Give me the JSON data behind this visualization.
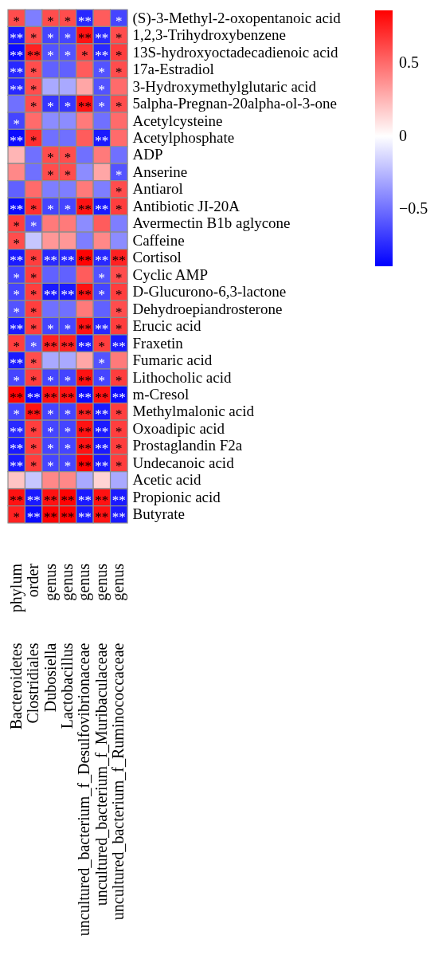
{
  "chart_data": {
    "type": "heatmap",
    "categories": [
      "Bacteroidetes",
      "Clostridiales",
      "Dubosiella",
      "Lactobacillus",
      "uncultured_bacterium_f_Desulfovibrionaceae",
      "uncultured_bacterium_f_Muribaculaceae",
      "uncultured_bacterium_f_Ruminococcaceae"
    ],
    "annotations": [
      "phylum",
      "order",
      "genus",
      "genus",
      "genus",
      "genus",
      "genus"
    ],
    "y_categories": [
      null,
      null,
      null,
      null,
      null,
      null,
      null,
      null,
      null,
      null,
      null,
      null,
      null,
      null,
      null,
      null,
      null,
      null,
      null,
      null,
      null,
      null,
      null,
      null,
      null,
      null,
      null,
      null,
      null,
      null
    ],
    "y2_categories": [
      "(S)-3-Methyl-2-oxopentanoic acid",
      "1,2,3-Trihydroxybenzene",
      "13S-hydroxyoctadecadienoic acid",
      "17a-Estradiol",
      "3-Hydroxymethylglutaric acid",
      "5alpha-Pregnan-20alpha-ol-3-one",
      "Acetylcysteine",
      "Acetylphosphate",
      "ADP",
      "Anserine",
      "Antiarol",
      "Antibiotic JI-20A",
      "Avermectin B1b aglycone",
      "Caffeine",
      "Cortisol",
      "Cyclic AMP",
      "D-Glucurono-6,3-lactone",
      "Dehydroepiandrosterone",
      "Erucic acid",
      "Fraxetin",
      "Fumaric acid",
      "Lithocholic acid",
      "m-Cresol",
      "Methylmalonic acid",
      "Oxoadipic acid",
      "Prostaglandin F2a",
      "Undecanoic acid",
      "Acetic acid",
      "Propionic acid",
      "Butyrate"
    ],
    "cells": [
      [
        0.6,
        -0.45,
        0.6,
        0.6,
        -0.75,
        0.55,
        -0.65
      ],
      [
        -0.8,
        0.6,
        -0.65,
        -0.65,
        0.8,
        -0.75,
        0.6
      ],
      [
        -0.85,
        0.75,
        -0.6,
        -0.6,
        0.65,
        -0.75,
        0.65
      ],
      [
        -0.75,
        0.6,
        -0.55,
        -0.55,
        0.55,
        -0.6,
        0.6
      ],
      [
        -0.75,
        0.6,
        -0.3,
        -0.3,
        0.3,
        -0.6,
        0.5
      ],
      [
        -0.5,
        0.6,
        -0.7,
        -0.7,
        0.8,
        -0.6,
        0.6
      ],
      [
        -0.65,
        0.5,
        -0.4,
        -0.4,
        0.45,
        -0.5,
        0.5
      ],
      [
        -0.85,
        0.7,
        -0.5,
        -0.5,
        0.55,
        -0.8,
        0.5
      ],
      [
        0.25,
        -0.5,
        0.6,
        0.6,
        -0.5,
        0.45,
        -0.5
      ],
      [
        0.4,
        -0.5,
        0.6,
        0.6,
        -0.4,
        0.3,
        -0.6
      ],
      [
        -0.55,
        0.5,
        -0.45,
        -0.45,
        0.45,
        -0.45,
        0.6
      ],
      [
        -0.85,
        0.7,
        -0.65,
        -0.65,
        0.8,
        -0.8,
        0.65
      ],
      [
        0.65,
        -0.6,
        0.45,
        0.45,
        -0.4,
        0.55,
        -0.45
      ],
      [
        0.6,
        -0.2,
        0.35,
        0.35,
        -0.45,
        0.4,
        -0.4
      ],
      [
        -0.8,
        0.65,
        -0.75,
        -0.75,
        0.85,
        -0.75,
        0.75
      ],
      [
        -0.65,
        0.65,
        -0.55,
        -0.55,
        0.55,
        -0.6,
        0.6
      ],
      [
        -0.65,
        0.65,
        -0.8,
        -0.8,
        0.8,
        -0.65,
        0.65
      ],
      [
        -0.6,
        0.65,
        -0.5,
        -0.5,
        0.45,
        -0.55,
        0.6
      ],
      [
        -0.8,
        0.65,
        -0.65,
        -0.65,
        0.8,
        -0.75,
        0.65
      ],
      [
        0.65,
        -0.6,
        0.75,
        0.75,
        -0.8,
        0.65,
        -0.8
      ],
      [
        -0.8,
        0.6,
        -0.3,
        -0.3,
        0.3,
        -0.6,
        0.45
      ],
      [
        -0.65,
        0.65,
        -0.65,
        -0.65,
        0.8,
        -0.65,
        0.65
      ],
      [
        0.85,
        -0.85,
        0.8,
        0.8,
        -0.85,
        0.8,
        -0.85
      ],
      [
        -0.65,
        0.8,
        -0.65,
        -0.65,
        0.75,
        -0.8,
        0.65
      ],
      [
        -0.75,
        0.65,
        -0.65,
        -0.65,
        0.8,
        -0.8,
        0.65
      ],
      [
        -0.8,
        0.65,
        -0.65,
        -0.65,
        0.8,
        -0.8,
        0.65
      ],
      [
        -0.8,
        0.65,
        -0.65,
        -0.65,
        0.85,
        -0.8,
        0.65
      ],
      [
        0.2,
        -0.2,
        0.4,
        0.4,
        -0.3,
        0.15,
        -0.3
      ],
      [
        0.8,
        -0.8,
        0.8,
        0.85,
        -0.8,
        0.8,
        -0.8
      ],
      [
        0.75,
        -0.85,
        0.85,
        0.85,
        -0.8,
        0.8,
        -0.8
      ]
    ],
    "cell_labels": [
      [
        "*",
        null,
        "*",
        "*",
        "**",
        null,
        "*"
      ],
      [
        "**",
        "*",
        "*",
        "*",
        "**",
        "**",
        "*"
      ],
      [
        "**",
        "**",
        "*",
        "*",
        "*",
        "**",
        "*"
      ],
      [
        "**",
        "*",
        null,
        null,
        null,
        "*",
        "*"
      ],
      [
        "**",
        "*",
        null,
        null,
        null,
        "*",
        null
      ],
      [
        null,
        "*",
        "*",
        "*",
        "**",
        "*",
        "*"
      ],
      [
        "*",
        null,
        null,
        null,
        null,
        null,
        null
      ],
      [
        "**",
        "*",
        null,
        null,
        null,
        "**",
        null
      ],
      [
        null,
        null,
        "*",
        "*",
        null,
        null,
        null
      ],
      [
        null,
        null,
        "*",
        "*",
        null,
        null,
        "*"
      ],
      [
        null,
        null,
        null,
        null,
        null,
        null,
        "*"
      ],
      [
        "**",
        "*",
        "*",
        "*",
        "**",
        "**",
        "*"
      ],
      [
        "*",
        "*",
        null,
        null,
        null,
        null,
        null
      ],
      [
        "*",
        null,
        null,
        null,
        null,
        null,
        null
      ],
      [
        "**",
        "*",
        "**",
        "**",
        "**",
        "**",
        "**"
      ],
      [
        "*",
        "*",
        null,
        null,
        null,
        "*",
        "*"
      ],
      [
        "*",
        "*",
        "**",
        "**",
        "**",
        "*",
        "*"
      ],
      [
        "*",
        "*",
        null,
        null,
        null,
        null,
        "*"
      ],
      [
        "**",
        "*",
        "*",
        "*",
        "**",
        "**",
        "*"
      ],
      [
        "*",
        "*",
        "**",
        "**",
        "**",
        "*",
        "**"
      ],
      [
        "**",
        "*",
        null,
        null,
        null,
        "*",
        null
      ],
      [
        "*",
        "*",
        "*",
        "*",
        "**",
        "*",
        "*"
      ],
      [
        "**",
        "**",
        "**",
        "**",
        "**",
        "**",
        "**"
      ],
      [
        "*",
        "**",
        "*",
        "*",
        "**",
        "**",
        "*"
      ],
      [
        "**",
        "*",
        "*",
        "*",
        "**",
        "**",
        "*"
      ],
      [
        "**",
        "*",
        "*",
        "*",
        "**",
        "**",
        "*"
      ],
      [
        "**",
        "*",
        "*",
        "*",
        "**",
        "**",
        "*"
      ],
      [
        null,
        null,
        null,
        null,
        null,
        null,
        null
      ],
      [
        "**",
        "**",
        "**",
        "**",
        "**",
        "**",
        "**"
      ],
      [
        "*",
        "**",
        "**",
        "**",
        "**",
        "**",
        "**"
      ]
    ],
    "clim": [
      -0.89,
      0.86
    ],
    "cticks": [
      -0.5,
      0,
      0.5
    ]
  }
}
